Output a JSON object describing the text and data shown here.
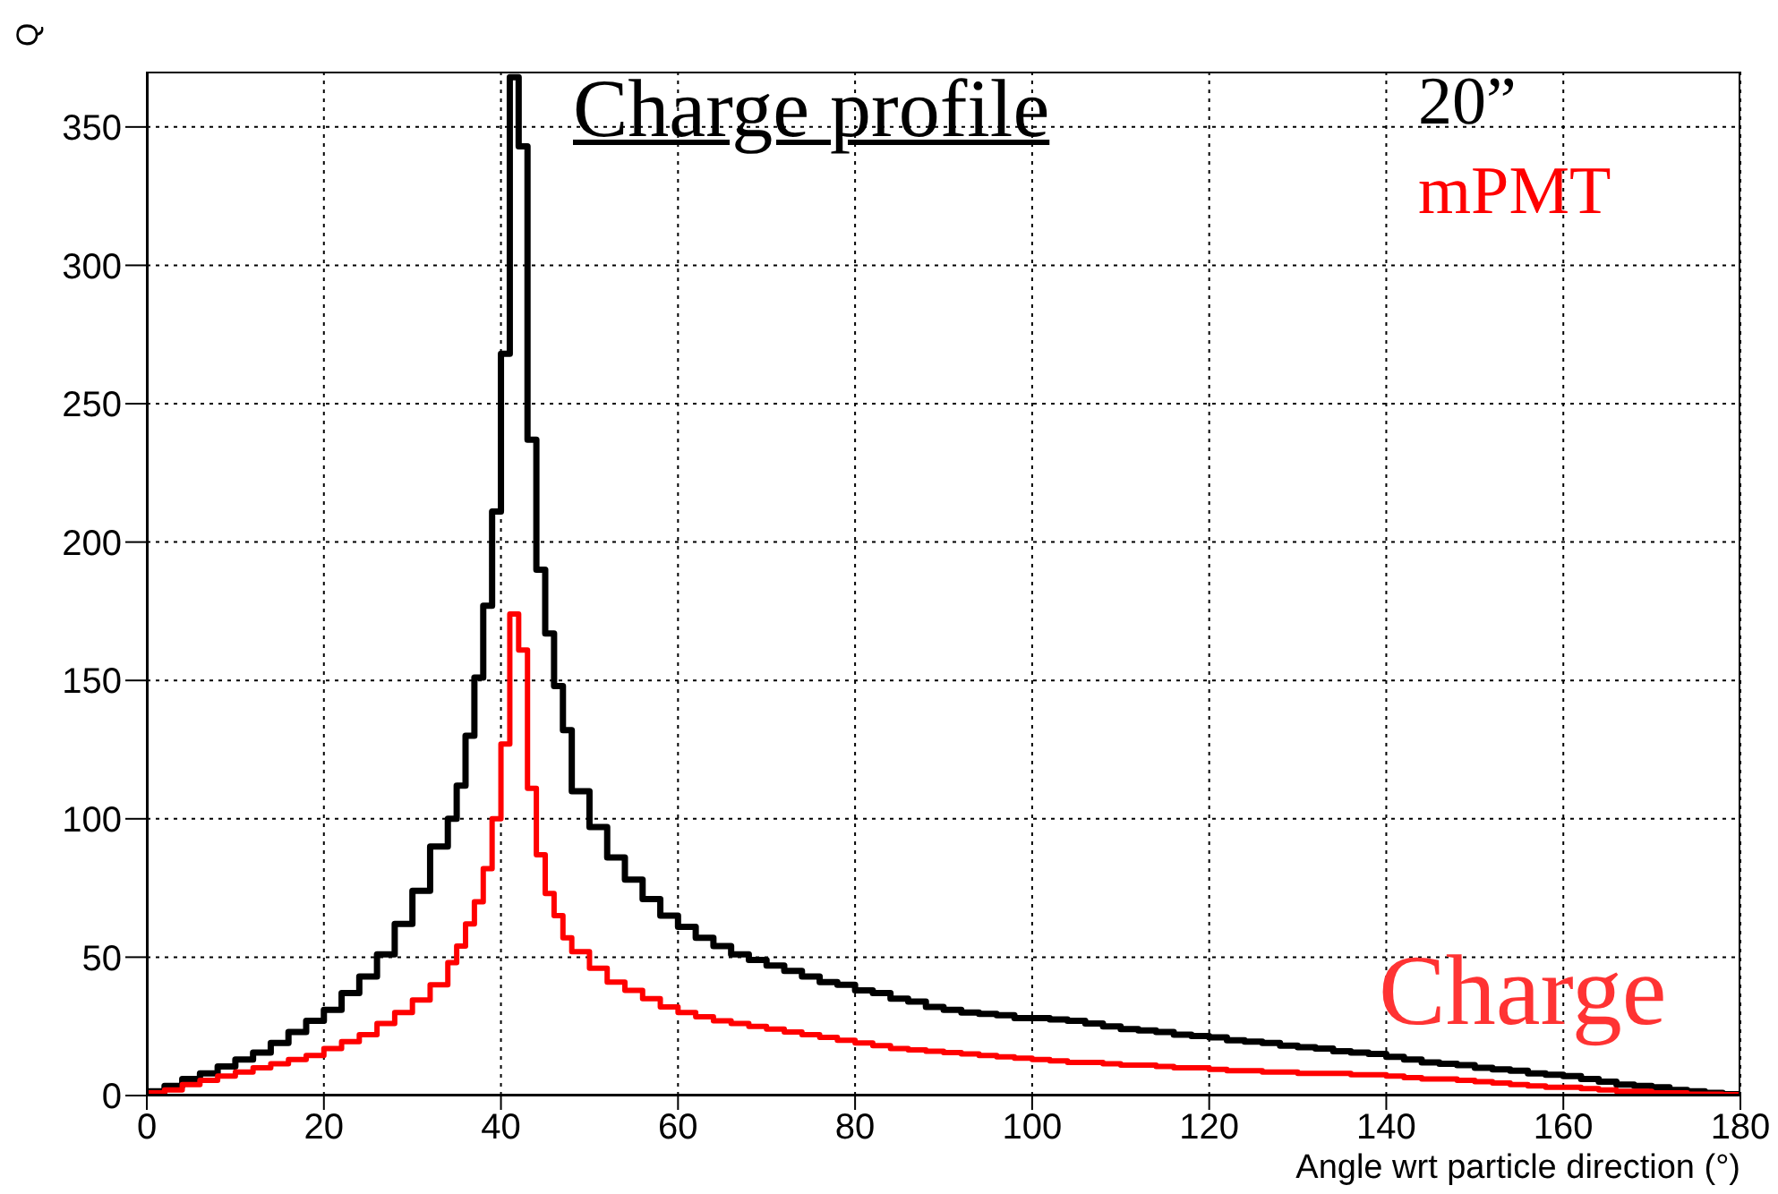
{
  "chart_data": {
    "type": "histogram",
    "title": "Charge profile",
    "xlabel": "Angle wrt particle direction (°)",
    "ylabel": "Q",
    "bins": [
      0,
      2,
      4,
      6,
      8,
      10,
      12,
      14,
      16,
      18,
      20,
      22,
      24,
      26,
      28,
      30,
      32,
      34,
      35,
      36,
      37,
      38,
      39,
      40,
      41,
      42,
      43,
      44,
      45,
      46,
      47,
      48,
      50,
      52,
      54,
      56,
      58,
      60,
      62,
      64,
      66,
      68,
      70,
      72,
      74,
      76,
      78,
      80,
      82,
      84,
      86,
      88,
      90,
      92,
      94,
      96,
      98,
      100,
      102,
      104,
      106,
      108,
      110,
      112,
      114,
      116,
      118,
      120,
      122,
      124,
      126,
      128,
      130,
      132,
      134,
      136,
      138,
      140,
      142,
      144,
      146,
      148,
      150,
      152,
      154,
      156,
      158,
      160,
      162,
      164,
      166,
      168,
      170,
      172,
      174,
      176,
      178,
      180
    ],
    "series": [
      {
        "name": "20”",
        "color": "#000000",
        "values": [
          1.5,
          3.5,
          6,
          8,
          10.5,
          13,
          15.5,
          19,
          23,
          27,
          31,
          37,
          43,
          51,
          62,
          74,
          90,
          100,
          112,
          130,
          151,
          177,
          211,
          268,
          368,
          343,
          237,
          190,
          167,
          148,
          132,
          110,
          97,
          86,
          78,
          71,
          65,
          61,
          57,
          54,
          51,
          49,
          47,
          45,
          43,
          41,
          40,
          38,
          37,
          35,
          34,
          32,
          31,
          30,
          29.5,
          29,
          28,
          28,
          27.5,
          27,
          26,
          25,
          24,
          23.5,
          23,
          22,
          21.5,
          21,
          20,
          19.5,
          19,
          18,
          17.5,
          17,
          16,
          15.5,
          15,
          14,
          13,
          12,
          11.5,
          11,
          10,
          9.5,
          9,
          8,
          7.5,
          7,
          6,
          5,
          4,
          3.5,
          3,
          2,
          1.5,
          1,
          0.5
        ]
      },
      {
        "name": "mPMT",
        "color": "#ff0000",
        "values": [
          1,
          2,
          4,
          5.5,
          7,
          8.5,
          10,
          11.5,
          13,
          14.5,
          17,
          19.5,
          22,
          26,
          30,
          34.5,
          40,
          48,
          54,
          62,
          70,
          82,
          100,
          127,
          174,
          161,
          111,
          87,
          73,
          65,
          57,
          52,
          46,
          41,
          38,
          35,
          32,
          30,
          28.5,
          27,
          26,
          25,
          24,
          23,
          22,
          21,
          20,
          19,
          18,
          17,
          16.5,
          16,
          15.5,
          15,
          14.5,
          14,
          13.5,
          13,
          12.5,
          12,
          12,
          11.5,
          11,
          11,
          10.5,
          10,
          10,
          9.5,
          9,
          9,
          8.5,
          8.5,
          8,
          8,
          8,
          7.5,
          7.5,
          7,
          6.5,
          6,
          6,
          5.5,
          5,
          4.5,
          4,
          3.5,
          3,
          3,
          2.5,
          2,
          1.5,
          1.5,
          1,
          1,
          0.5,
          0.5,
          0.3
        ]
      }
    ],
    "xlim": [
      0,
      180
    ],
    "xticks": [
      0,
      20,
      40,
      60,
      80,
      100,
      120,
      140,
      160,
      180
    ],
    "ylim": [
      0,
      370
    ],
    "yticks": [
      0,
      50,
      100,
      150,
      200,
      250,
      300,
      350
    ],
    "grid": true,
    "legend": "top right",
    "annotations": [
      "Charge"
    ]
  }
}
